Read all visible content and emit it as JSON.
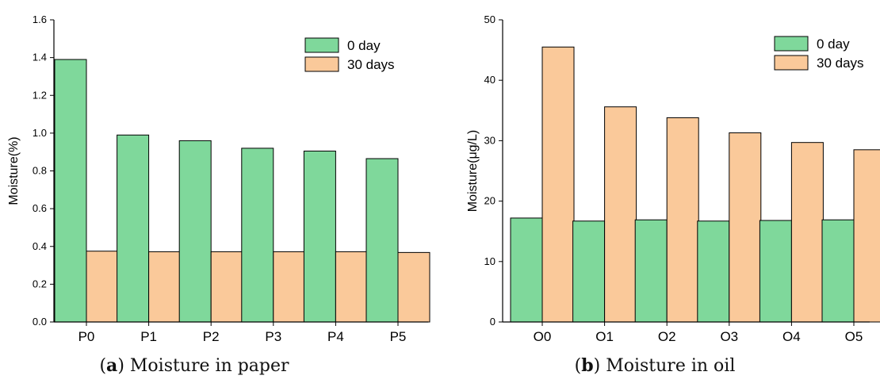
{
  "chart_data": [
    {
      "type": "bar",
      "caption_letter": "a",
      "caption_text": "Moisture in paper",
      "ylabel": "Moisture(%)",
      "xlabel": "",
      "categories": [
        "P0",
        "P1",
        "P2",
        "P3",
        "P4",
        "P5"
      ],
      "ylim": [
        0,
        1.6
      ],
      "yticks": [
        "0.0",
        "0.2",
        "0.4",
        "0.6",
        "0.8",
        "1.0",
        "1.2",
        "1.4",
        "1.6"
      ],
      "legend_position": "top-right",
      "grid": false,
      "series": [
        {
          "name": "0 day",
          "color": "#7fd89b",
          "values": [
            1.39,
            0.99,
            0.96,
            0.92,
            0.905,
            0.865
          ]
        },
        {
          "name": "30 days",
          "color": "#fac99a",
          "values": [
            0.375,
            0.372,
            0.372,
            0.372,
            0.372,
            0.368
          ]
        }
      ]
    },
    {
      "type": "bar",
      "caption_letter": "b",
      "caption_text": "Moisture in oil",
      "ylabel": "Moisture(μg/L)",
      "xlabel": "",
      "categories": [
        "O0",
        "O1",
        "O2",
        "O3",
        "O4",
        "O5"
      ],
      "ylim": [
        0,
        50
      ],
      "yticks": [
        "0",
        "10",
        "20",
        "30",
        "40",
        "50"
      ],
      "legend_position": "top-right",
      "grid": false,
      "series": [
        {
          "name": "0 day",
          "color": "#7fd89b",
          "values": [
            17.2,
            16.7,
            16.9,
            16.7,
            16.8,
            16.9
          ]
        },
        {
          "name": "30 days",
          "color": "#fac99a",
          "values": [
            45.5,
            35.6,
            33.8,
            31.3,
            29.7,
            28.5
          ]
        }
      ]
    }
  ]
}
